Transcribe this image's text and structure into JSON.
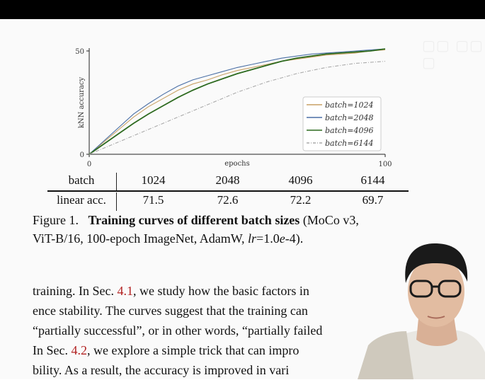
{
  "chart_data": {
    "type": "line",
    "xlabel": "epochs",
    "ylabel": "kNN accuracy",
    "xlim": [
      0,
      100
    ],
    "ylim": [
      0,
      50
    ],
    "xticks": [
      "0",
      "100"
    ],
    "yticks": [
      "0",
      "50"
    ],
    "grid": false,
    "legend_position": "right",
    "series": [
      {
        "name": "batch=1024",
        "color": "#c8a165",
        "dash": "solid",
        "x": [
          0,
          5,
          10,
          15,
          20,
          25,
          30,
          35,
          40,
          45,
          50,
          55,
          60,
          65,
          70,
          75,
          80,
          85,
          90,
          95,
          100
        ],
        "y": [
          0,
          6,
          12,
          18,
          23,
          27,
          31,
          34,
          36,
          38.5,
          40.5,
          42,
          43.5,
          45,
          46,
          47,
          48,
          48.5,
          49,
          50,
          50.5
        ]
      },
      {
        "name": "batch=2048",
        "color": "#4a6fa5",
        "dash": "solid",
        "x": [
          0,
          5,
          10,
          15,
          20,
          25,
          30,
          35,
          40,
          45,
          50,
          55,
          60,
          65,
          70,
          75,
          80,
          85,
          90,
          95,
          100
        ],
        "y": [
          0,
          6.5,
          13,
          19.5,
          24.5,
          29,
          33,
          36,
          38,
          40,
          42,
          43.5,
          45,
          46.5,
          47.5,
          48.5,
          49,
          49.5,
          50,
          50.5,
          51
        ]
      },
      {
        "name": "batch=4096",
        "color": "#2d6a1f",
        "dash": "solid",
        "x": [
          0,
          5,
          10,
          15,
          20,
          25,
          30,
          35,
          40,
          45,
          50,
          55,
          60,
          65,
          70,
          75,
          80,
          85,
          90,
          95,
          100
        ],
        "y": [
          0,
          5,
          10,
          15,
          19.5,
          23.5,
          27.5,
          31,
          34,
          36.5,
          39,
          41,
          43,
          45,
          46.5,
          47.5,
          48.5,
          49,
          49.5,
          50,
          51
        ]
      },
      {
        "name": "batch=6144",
        "color": "#aaaaaa",
        "dash": "dashdot",
        "x": [
          0,
          5,
          10,
          15,
          20,
          25,
          30,
          35,
          40,
          45,
          50,
          55,
          60,
          65,
          70,
          75,
          80,
          85,
          90,
          95,
          100
        ],
        "y": [
          0,
          3,
          6,
          9,
          12,
          15,
          18,
          21,
          24,
          27,
          30,
          32.5,
          35,
          37,
          39,
          40.5,
          42,
          43,
          44,
          44.5,
          45
        ]
      }
    ]
  },
  "table": {
    "header": [
      "batch",
      "1024",
      "2048",
      "4096",
      "6144"
    ],
    "row": [
      "linear acc.",
      "71.5",
      "72.6",
      "72.2",
      "69.7"
    ]
  },
  "caption": {
    "prefix": "Figure 1.",
    "bold": "Training curves of different batch sizes",
    "rest1": " (MoCo v3,",
    "rest2": "ViT-B/16, 100-epoch ImageNet, AdamW, ",
    "lr_label": "lr",
    "lr_value": "=1.0",
    "lr_e": "e",
    "lr_exp": "-4",
    "rest3": ")."
  },
  "body": {
    "line1_a": "training. In Sec. ",
    "line1_ref": "4.1",
    "line1_b": ", we study how the basic factors in",
    "line2": "ence stability. The curves suggest that the training can",
    "line3": "“partially successful”, or in other words, “partially failed",
    "line4_a": "In Sec. ",
    "line4_ref": "4.2",
    "line4_b": ", we explore a simple trick that can impro",
    "line5": "bility. As a result, the accuracy is improved in vari"
  },
  "colors": {
    "topbar": "#000000",
    "reference": "#b22222",
    "batch_1024": "#c8a165",
    "batch_2048": "#4a6fa5",
    "batch_4096": "#2d6a1f",
    "batch_6144": "#aaaaaa"
  }
}
